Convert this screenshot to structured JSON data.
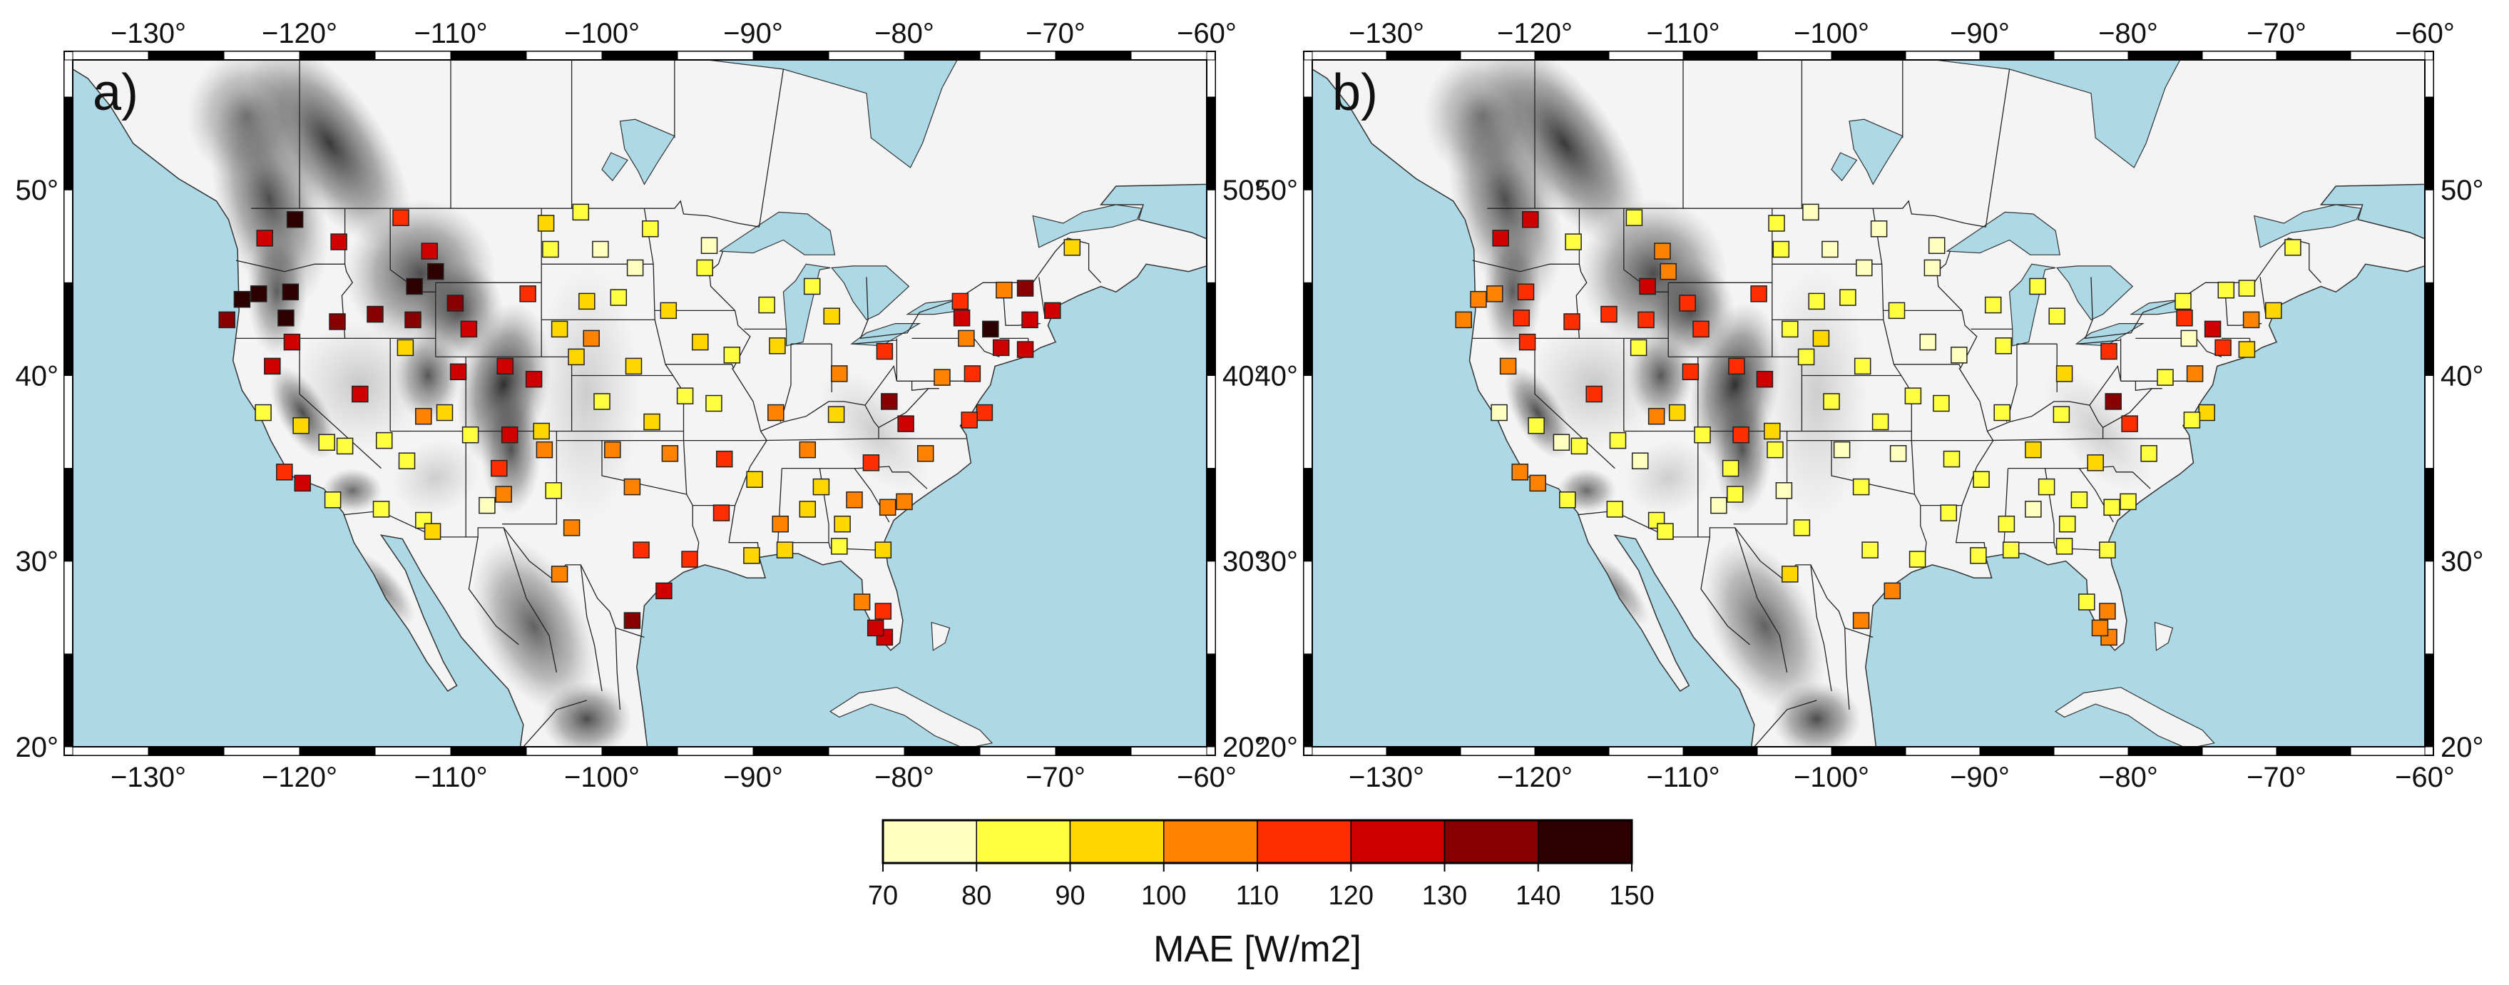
{
  "panels": [
    {
      "letter": "a)",
      "stations": [
        [
          -122.3,
          47.4,
          127
        ],
        [
          -120.3,
          48.4,
          149
        ],
        [
          -117.4,
          47.2,
          120
        ],
        [
          -113.3,
          48.5,
          118
        ],
        [
          -123.8,
          44.1,
          143
        ],
        [
          -122.7,
          44.4,
          145
        ],
        [
          -124.8,
          43.0,
          135
        ],
        [
          -120.6,
          44.5,
          143
        ],
        [
          -120.9,
          43.1,
          140
        ],
        [
          -117.5,
          42.9,
          133
        ],
        [
          -115.0,
          43.3,
          130
        ],
        [
          -112.4,
          44.8,
          142
        ],
        [
          -111.0,
          45.6,
          140
        ],
        [
          -109.7,
          43.9,
          137
        ],
        [
          -112.5,
          43.0,
          135
        ],
        [
          -111.4,
          46.7,
          125
        ],
        [
          -121.8,
          40.5,
          120
        ],
        [
          -120.5,
          41.8,
          125
        ],
        [
          -116.0,
          39.0,
          125
        ],
        [
          -113.0,
          41.5,
          95
        ],
        [
          -108.8,
          42.5,
          125
        ],
        [
          -106.4,
          40.5,
          125
        ],
        [
          -109.5,
          40.2,
          125
        ],
        [
          -111.8,
          37.8,
          105
        ],
        [
          -112.9,
          35.4,
          85
        ],
        [
          -106.1,
          36.8,
          120
        ],
        [
          -104.5,
          39.8,
          125
        ],
        [
          -104.9,
          44.4,
          118
        ],
        [
          -106.5,
          33.6,
          100
        ],
        [
          -106.8,
          35.0,
          110
        ],
        [
          -122.4,
          38.0,
          85
        ],
        [
          -119.9,
          37.3,
          90
        ],
        [
          -118.2,
          36.4,
          85
        ],
        [
          -117.0,
          36.2,
          80
        ],
        [
          -114.4,
          36.5,
          80
        ],
        [
          -110.4,
          38.0,
          95
        ],
        [
          -108.7,
          36.8,
          85
        ],
        [
          -121.0,
          34.8,
          110
        ],
        [
          -119.8,
          34.2,
          120
        ],
        [
          -117.8,
          33.3,
          85
        ],
        [
          -114.6,
          32.8,
          88
        ],
        [
          -111.8,
          32.2,
          85
        ],
        [
          -111.2,
          31.6,
          95
        ],
        [
          -107.6,
          33.0,
          75
        ],
        [
          -104.0,
          37.0,
          95
        ],
        [
          -103.8,
          36.0,
          105
        ],
        [
          -103.2,
          33.8,
          85
        ],
        [
          -102.0,
          31.8,
          100
        ],
        [
          -102.8,
          29.3,
          105
        ],
        [
          -100.0,
          38.6,
          88
        ],
        [
          -97.9,
          40.5,
          95
        ],
        [
          -101.7,
          41.0,
          95
        ],
        [
          -100.1,
          46.8,
          78
        ],
        [
          -103.7,
          48.2,
          90
        ],
        [
          -101.4,
          48.8,
          88
        ],
        [
          -97.8,
          45.8,
          75
        ],
        [
          -96.8,
          47.9,
          80
        ],
        [
          -93.2,
          45.8,
          80
        ],
        [
          -95.6,
          43.5,
          95
        ],
        [
          -92.9,
          47.0,
          78
        ],
        [
          -98.9,
          44.2,
          88
        ],
        [
          -103.4,
          46.8,
          88
        ],
        [
          -101.0,
          44.0,
          95
        ],
        [
          -102.8,
          42.5,
          90
        ],
        [
          -100.7,
          42.0,
          100
        ],
        [
          -93.5,
          41.8,
          90
        ],
        [
          -91.4,
          41.1,
          88
        ],
        [
          -96.7,
          37.5,
          90
        ],
        [
          -95.5,
          35.8,
          100
        ],
        [
          -98.0,
          34.0,
          108
        ],
        [
          -99.3,
          36.0,
          100
        ],
        [
          -92.6,
          38.5,
          85
        ],
        [
          -92.1,
          32.6,
          118
        ],
        [
          -94.5,
          38.9,
          88
        ],
        [
          -91.9,
          35.5,
          115
        ],
        [
          -89.1,
          43.8,
          88
        ],
        [
          -88.4,
          41.6,
          90
        ],
        [
          -86.1,
          44.8,
          88
        ],
        [
          -84.8,
          43.2,
          90
        ],
        [
          -84.3,
          40.1,
          100
        ],
        [
          -81.3,
          41.3,
          115
        ],
        [
          -88.5,
          38.0,
          100
        ],
        [
          -86.4,
          36.0,
          103
        ],
        [
          -84.5,
          37.9,
          98
        ],
        [
          -89.9,
          34.4,
          92
        ],
        [
          -85.5,
          34.0,
          95
        ],
        [
          -82.2,
          35.3,
          115
        ],
        [
          -81.0,
          38.6,
          133
        ],
        [
          -79.9,
          37.4,
          120
        ],
        [
          -83.3,
          33.3,
          100
        ],
        [
          -81.1,
          32.9,
          100
        ],
        [
          -78.6,
          35.8,
          100
        ],
        [
          -88.2,
          32.0,
          100
        ],
        [
          -86.4,
          32.8,
          90
        ],
        [
          -84.1,
          32.0,
          95
        ],
        [
          -81.4,
          30.6,
          90
        ],
        [
          -80.0,
          33.2,
          106
        ],
        [
          -97.4,
          30.6,
          118
        ],
        [
          -95.9,
          28.4,
          120
        ],
        [
          -98.0,
          26.8,
          135
        ],
        [
          -94.2,
          30.1,
          118
        ],
        [
          -90.1,
          30.3,
          95
        ],
        [
          -87.9,
          30.6,
          90
        ],
        [
          -84.3,
          30.8,
          88
        ],
        [
          -82.8,
          27.8,
          100
        ],
        [
          -81.4,
          27.3,
          115
        ],
        [
          -81.3,
          25.9,
          120
        ],
        [
          -81.9,
          26.4,
          120
        ],
        [
          -75.5,
          40.1,
          115
        ],
        [
          -74.3,
          42.5,
          140
        ],
        [
          -76.2,
          43.1,
          125
        ],
        [
          -71.7,
          43.0,
          120
        ],
        [
          -72.0,
          41.4,
          120
        ],
        [
          -74.7,
          38.0,
          115
        ],
        [
          -75.7,
          37.6,
          110
        ],
        [
          -75.9,
          42.0,
          105
        ],
        [
          -76.3,
          44.0,
          110
        ],
        [
          -72.0,
          44.7,
          130
        ],
        [
          -68.9,
          46.9,
          95
        ],
        [
          -70.2,
          43.5,
          120
        ],
        [
          -73.6,
          41.5,
          122
        ],
        [
          -73.4,
          44.6,
          100
        ],
        [
          -77.5,
          39.9,
          100
        ]
      ]
    },
    {
      "letter": "b)",
      "stations": [
        [
          -122.3,
          47.4,
          120
        ],
        [
          -120.3,
          48.4,
          120
        ],
        [
          -117.4,
          47.2,
          88
        ],
        [
          -113.3,
          48.5,
          85
        ],
        [
          -123.8,
          44.1,
          105
        ],
        [
          -122.7,
          44.4,
          105
        ],
        [
          -124.8,
          43.0,
          100
        ],
        [
          -120.6,
          44.5,
          118
        ],
        [
          -120.9,
          43.1,
          118
        ],
        [
          -117.5,
          42.9,
          115
        ],
        [
          -115.0,
          43.3,
          112
        ],
        [
          -112.4,
          44.8,
          125
        ],
        [
          -111.0,
          45.6,
          102
        ],
        [
          -109.7,
          43.9,
          110
        ],
        [
          -112.5,
          43.0,
          118
        ],
        [
          -111.4,
          46.7,
          100
        ],
        [
          -121.8,
          40.5,
          100
        ],
        [
          -120.5,
          41.8,
          112
        ],
        [
          -116.0,
          39.0,
          118
        ],
        [
          -113.0,
          41.5,
          85
        ],
        [
          -108.8,
          42.5,
          118
        ],
        [
          -106.4,
          40.5,
          115
        ],
        [
          -109.5,
          40.2,
          118
        ],
        [
          -111.8,
          37.8,
          100
        ],
        [
          -112.9,
          35.4,
          75
        ],
        [
          -106.1,
          36.8,
          112
        ],
        [
          -104.5,
          39.8,
          120
        ],
        [
          -104.9,
          44.4,
          115
        ],
        [
          -106.5,
          33.6,
          85
        ],
        [
          -106.8,
          35.0,
          88
        ],
        [
          -122.4,
          38.0,
          75
        ],
        [
          -119.9,
          37.3,
          80
        ],
        [
          -118.2,
          36.4,
          78
        ],
        [
          -117.0,
          36.2,
          80
        ],
        [
          -114.4,
          36.5,
          82
        ],
        [
          -110.4,
          38.0,
          95
        ],
        [
          -108.7,
          36.8,
          85
        ],
        [
          -121.0,
          34.8,
          100
        ],
        [
          -119.8,
          34.2,
          100
        ],
        [
          -117.8,
          33.3,
          80
        ],
        [
          -114.6,
          32.8,
          80
        ],
        [
          -111.8,
          32.2,
          80
        ],
        [
          -111.2,
          31.6,
          82
        ],
        [
          -107.6,
          33.0,
          75
        ],
        [
          -104.0,
          37.0,
          92
        ],
        [
          -103.8,
          36.0,
          88
        ],
        [
          -103.2,
          33.8,
          75
        ],
        [
          -102.0,
          31.8,
          88
        ],
        [
          -102.8,
          29.3,
          90
        ],
        [
          -100.0,
          38.6,
          85
        ],
        [
          -97.9,
          40.5,
          80
        ],
        [
          -101.7,
          41.0,
          85
        ],
        [
          -100.1,
          46.8,
          78
        ],
        [
          -103.7,
          48.2,
          85
        ],
        [
          -101.4,
          48.8,
          78
        ],
        [
          -97.8,
          45.8,
          75
        ],
        [
          -96.8,
          47.9,
          75
        ],
        [
          -93.2,
          45.8,
          72
        ],
        [
          -95.6,
          43.5,
          85
        ],
        [
          -92.9,
          47.0,
          73
        ],
        [
          -98.9,
          44.2,
          82
        ],
        [
          -103.4,
          46.8,
          85
        ],
        [
          -101.0,
          44.0,
          88
        ],
        [
          -102.8,
          42.5,
          88
        ],
        [
          -100.7,
          42.0,
          92
        ],
        [
          -93.5,
          41.8,
          78
        ],
        [
          -91.4,
          41.1,
          78
        ],
        [
          -96.7,
          37.5,
          80
        ],
        [
          -95.5,
          35.8,
          78
        ],
        [
          -98.0,
          34.0,
          85
        ],
        [
          -99.3,
          36.0,
          78
        ],
        [
          -92.6,
          38.5,
          82
        ],
        [
          -92.1,
          32.6,
          85
        ],
        [
          -94.5,
          38.9,
          82
        ],
        [
          -91.9,
          35.5,
          85
        ],
        [
          -89.1,
          43.8,
          88
        ],
        [
          -88.4,
          41.6,
          82
        ],
        [
          -86.1,
          44.8,
          88
        ],
        [
          -84.8,
          43.2,
          82
        ],
        [
          -84.3,
          40.1,
          95
        ],
        [
          -81.3,
          41.3,
          110
        ],
        [
          -88.5,
          38.0,
          88
        ],
        [
          -86.4,
          36.0,
          90
        ],
        [
          -84.5,
          37.9,
          85
        ],
        [
          -89.9,
          34.4,
          80
        ],
        [
          -85.5,
          34.0,
          85
        ],
        [
          -82.2,
          35.3,
          98
        ],
        [
          -81.0,
          38.6,
          133
        ],
        [
          -79.9,
          37.4,
          110
        ],
        [
          -83.3,
          33.3,
          85
        ],
        [
          -81.1,
          32.9,
          80
        ],
        [
          -78.6,
          35.8,
          82
        ],
        [
          -88.2,
          32.0,
          82
        ],
        [
          -86.4,
          32.8,
          78
        ],
        [
          -84.1,
          32.0,
          80
        ],
        [
          -81.4,
          30.6,
          85
        ],
        [
          -80.0,
          33.2,
          85
        ],
        [
          -97.4,
          30.6,
          88
        ],
        [
          -95.9,
          28.4,
          100
        ],
        [
          -98.0,
          26.8,
          102
        ],
        [
          -94.2,
          30.1,
          85
        ],
        [
          -90.1,
          30.3,
          85
        ],
        [
          -87.9,
          30.6,
          82
        ],
        [
          -84.3,
          30.8,
          85
        ],
        [
          -82.8,
          27.8,
          85
        ],
        [
          -81.4,
          27.3,
          100
        ],
        [
          -81.3,
          25.9,
          100
        ],
        [
          -81.9,
          26.4,
          100
        ],
        [
          -75.5,
          40.1,
          100
        ],
        [
          -74.3,
          42.5,
          120
        ],
        [
          -76.2,
          43.1,
          118
        ],
        [
          -71.7,
          43.0,
          105
        ],
        [
          -72.0,
          41.4,
          95
        ],
        [
          -74.7,
          38.0,
          95
        ],
        [
          -75.7,
          37.6,
          80
        ],
        [
          -75.9,
          42.0,
          72
        ],
        [
          -76.3,
          44.0,
          80
        ],
        [
          -72.0,
          44.7,
          88
        ],
        [
          -68.9,
          46.9,
          82
        ],
        [
          -70.2,
          43.5,
          90
        ],
        [
          -73.6,
          41.5,
          112
        ],
        [
          -73.4,
          44.6,
          85
        ],
        [
          -77.5,
          39.9,
          88
        ]
      ]
    }
  ],
  "map_extent": {
    "lon_min": -135,
    "lon_max": -60,
    "lat_min": 20,
    "lat_max": 57
  },
  "lon_ticks": [
    -130,
    -120,
    -110,
    -100,
    -90,
    -80,
    -70,
    -60
  ],
  "lat_ticks": [
    20,
    30,
    40,
    50
  ],
  "colorbar": {
    "title": "MAE [W/m2]",
    "ticks": [
      70,
      80,
      90,
      100,
      110,
      120,
      130,
      140,
      150
    ],
    "colors": [
      "#ffffc0",
      "#ffff40",
      "#ffd700",
      "#ff8200",
      "#ff2e00",
      "#d00000",
      "#880000",
      "#2d0000"
    ]
  },
  "colors": {
    "ocean": "#add8e6",
    "land_low": "#f4f4f4",
    "land_high": "#111111"
  }
}
